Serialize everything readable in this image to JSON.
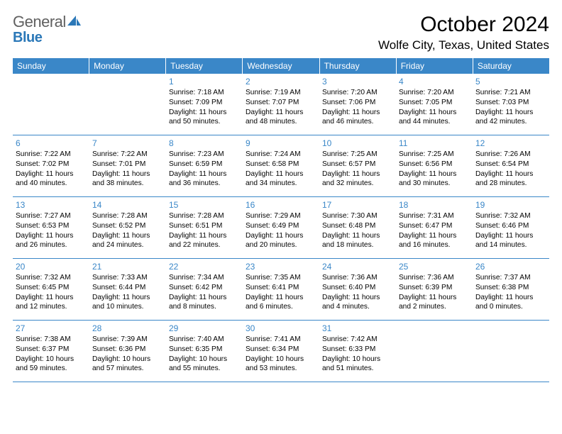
{
  "colors": {
    "header_bg": "#3a87c8",
    "header_text": "#ffffff",
    "daynum_color": "#3a87c8",
    "body_text": "#030303",
    "logo_gray": "#606060",
    "logo_blue": "#2b78b8",
    "row_border": "#3a87c8",
    "background": "#ffffff"
  },
  "logo": {
    "word1": "General",
    "word2": "Blue"
  },
  "title": "October 2024",
  "location": "Wolfe City, Texas, United States",
  "weekdays": [
    "Sunday",
    "Monday",
    "Tuesday",
    "Wednesday",
    "Thursday",
    "Friday",
    "Saturday"
  ],
  "labels": {
    "sunrise": "Sunrise:",
    "sunset": "Sunset:",
    "daylight": "Daylight:"
  },
  "weeks": [
    [
      null,
      null,
      {
        "d": "1",
        "sunrise": "7:18 AM",
        "sunset": "7:09 PM",
        "daylight": "11 hours and 50 minutes."
      },
      {
        "d": "2",
        "sunrise": "7:19 AM",
        "sunset": "7:07 PM",
        "daylight": "11 hours and 48 minutes."
      },
      {
        "d": "3",
        "sunrise": "7:20 AM",
        "sunset": "7:06 PM",
        "daylight": "11 hours and 46 minutes."
      },
      {
        "d": "4",
        "sunrise": "7:20 AM",
        "sunset": "7:05 PM",
        "daylight": "11 hours and 44 minutes."
      },
      {
        "d": "5",
        "sunrise": "7:21 AM",
        "sunset": "7:03 PM",
        "daylight": "11 hours and 42 minutes."
      }
    ],
    [
      {
        "d": "6",
        "sunrise": "7:22 AM",
        "sunset": "7:02 PM",
        "daylight": "11 hours and 40 minutes."
      },
      {
        "d": "7",
        "sunrise": "7:22 AM",
        "sunset": "7:01 PM",
        "daylight": "11 hours and 38 minutes."
      },
      {
        "d": "8",
        "sunrise": "7:23 AM",
        "sunset": "6:59 PM",
        "daylight": "11 hours and 36 minutes."
      },
      {
        "d": "9",
        "sunrise": "7:24 AM",
        "sunset": "6:58 PM",
        "daylight": "11 hours and 34 minutes."
      },
      {
        "d": "10",
        "sunrise": "7:25 AM",
        "sunset": "6:57 PM",
        "daylight": "11 hours and 32 minutes."
      },
      {
        "d": "11",
        "sunrise": "7:25 AM",
        "sunset": "6:56 PM",
        "daylight": "11 hours and 30 minutes."
      },
      {
        "d": "12",
        "sunrise": "7:26 AM",
        "sunset": "6:54 PM",
        "daylight": "11 hours and 28 minutes."
      }
    ],
    [
      {
        "d": "13",
        "sunrise": "7:27 AM",
        "sunset": "6:53 PM",
        "daylight": "11 hours and 26 minutes."
      },
      {
        "d": "14",
        "sunrise": "7:28 AM",
        "sunset": "6:52 PM",
        "daylight": "11 hours and 24 minutes."
      },
      {
        "d": "15",
        "sunrise": "7:28 AM",
        "sunset": "6:51 PM",
        "daylight": "11 hours and 22 minutes."
      },
      {
        "d": "16",
        "sunrise": "7:29 AM",
        "sunset": "6:49 PM",
        "daylight": "11 hours and 20 minutes."
      },
      {
        "d": "17",
        "sunrise": "7:30 AM",
        "sunset": "6:48 PM",
        "daylight": "11 hours and 18 minutes."
      },
      {
        "d": "18",
        "sunrise": "7:31 AM",
        "sunset": "6:47 PM",
        "daylight": "11 hours and 16 minutes."
      },
      {
        "d": "19",
        "sunrise": "7:32 AM",
        "sunset": "6:46 PM",
        "daylight": "11 hours and 14 minutes."
      }
    ],
    [
      {
        "d": "20",
        "sunrise": "7:32 AM",
        "sunset": "6:45 PM",
        "daylight": "11 hours and 12 minutes."
      },
      {
        "d": "21",
        "sunrise": "7:33 AM",
        "sunset": "6:44 PM",
        "daylight": "11 hours and 10 minutes."
      },
      {
        "d": "22",
        "sunrise": "7:34 AM",
        "sunset": "6:42 PM",
        "daylight": "11 hours and 8 minutes."
      },
      {
        "d": "23",
        "sunrise": "7:35 AM",
        "sunset": "6:41 PM",
        "daylight": "11 hours and 6 minutes."
      },
      {
        "d": "24",
        "sunrise": "7:36 AM",
        "sunset": "6:40 PM",
        "daylight": "11 hours and 4 minutes."
      },
      {
        "d": "25",
        "sunrise": "7:36 AM",
        "sunset": "6:39 PM",
        "daylight": "11 hours and 2 minutes."
      },
      {
        "d": "26",
        "sunrise": "7:37 AM",
        "sunset": "6:38 PM",
        "daylight": "11 hours and 0 minutes."
      }
    ],
    [
      {
        "d": "27",
        "sunrise": "7:38 AM",
        "sunset": "6:37 PM",
        "daylight": "10 hours and 59 minutes."
      },
      {
        "d": "28",
        "sunrise": "7:39 AM",
        "sunset": "6:36 PM",
        "daylight": "10 hours and 57 minutes."
      },
      {
        "d": "29",
        "sunrise": "7:40 AM",
        "sunset": "6:35 PM",
        "daylight": "10 hours and 55 minutes."
      },
      {
        "d": "30",
        "sunrise": "7:41 AM",
        "sunset": "6:34 PM",
        "daylight": "10 hours and 53 minutes."
      },
      {
        "d": "31",
        "sunrise": "7:42 AM",
        "sunset": "6:33 PM",
        "daylight": "10 hours and 51 minutes."
      },
      null,
      null
    ]
  ]
}
